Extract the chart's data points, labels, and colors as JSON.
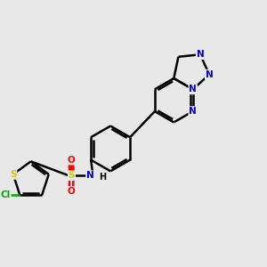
{
  "bg": "#e8e8e8",
  "C": "#000000",
  "N": "#0000cc",
  "O": "#ff0000",
  "S": "#cccc00",
  "Cl": "#00aa00",
  "lw": 1.8,
  "fs": 7.5,
  "figsize": [
    3.0,
    3.0
  ],
  "dpi": 100
}
